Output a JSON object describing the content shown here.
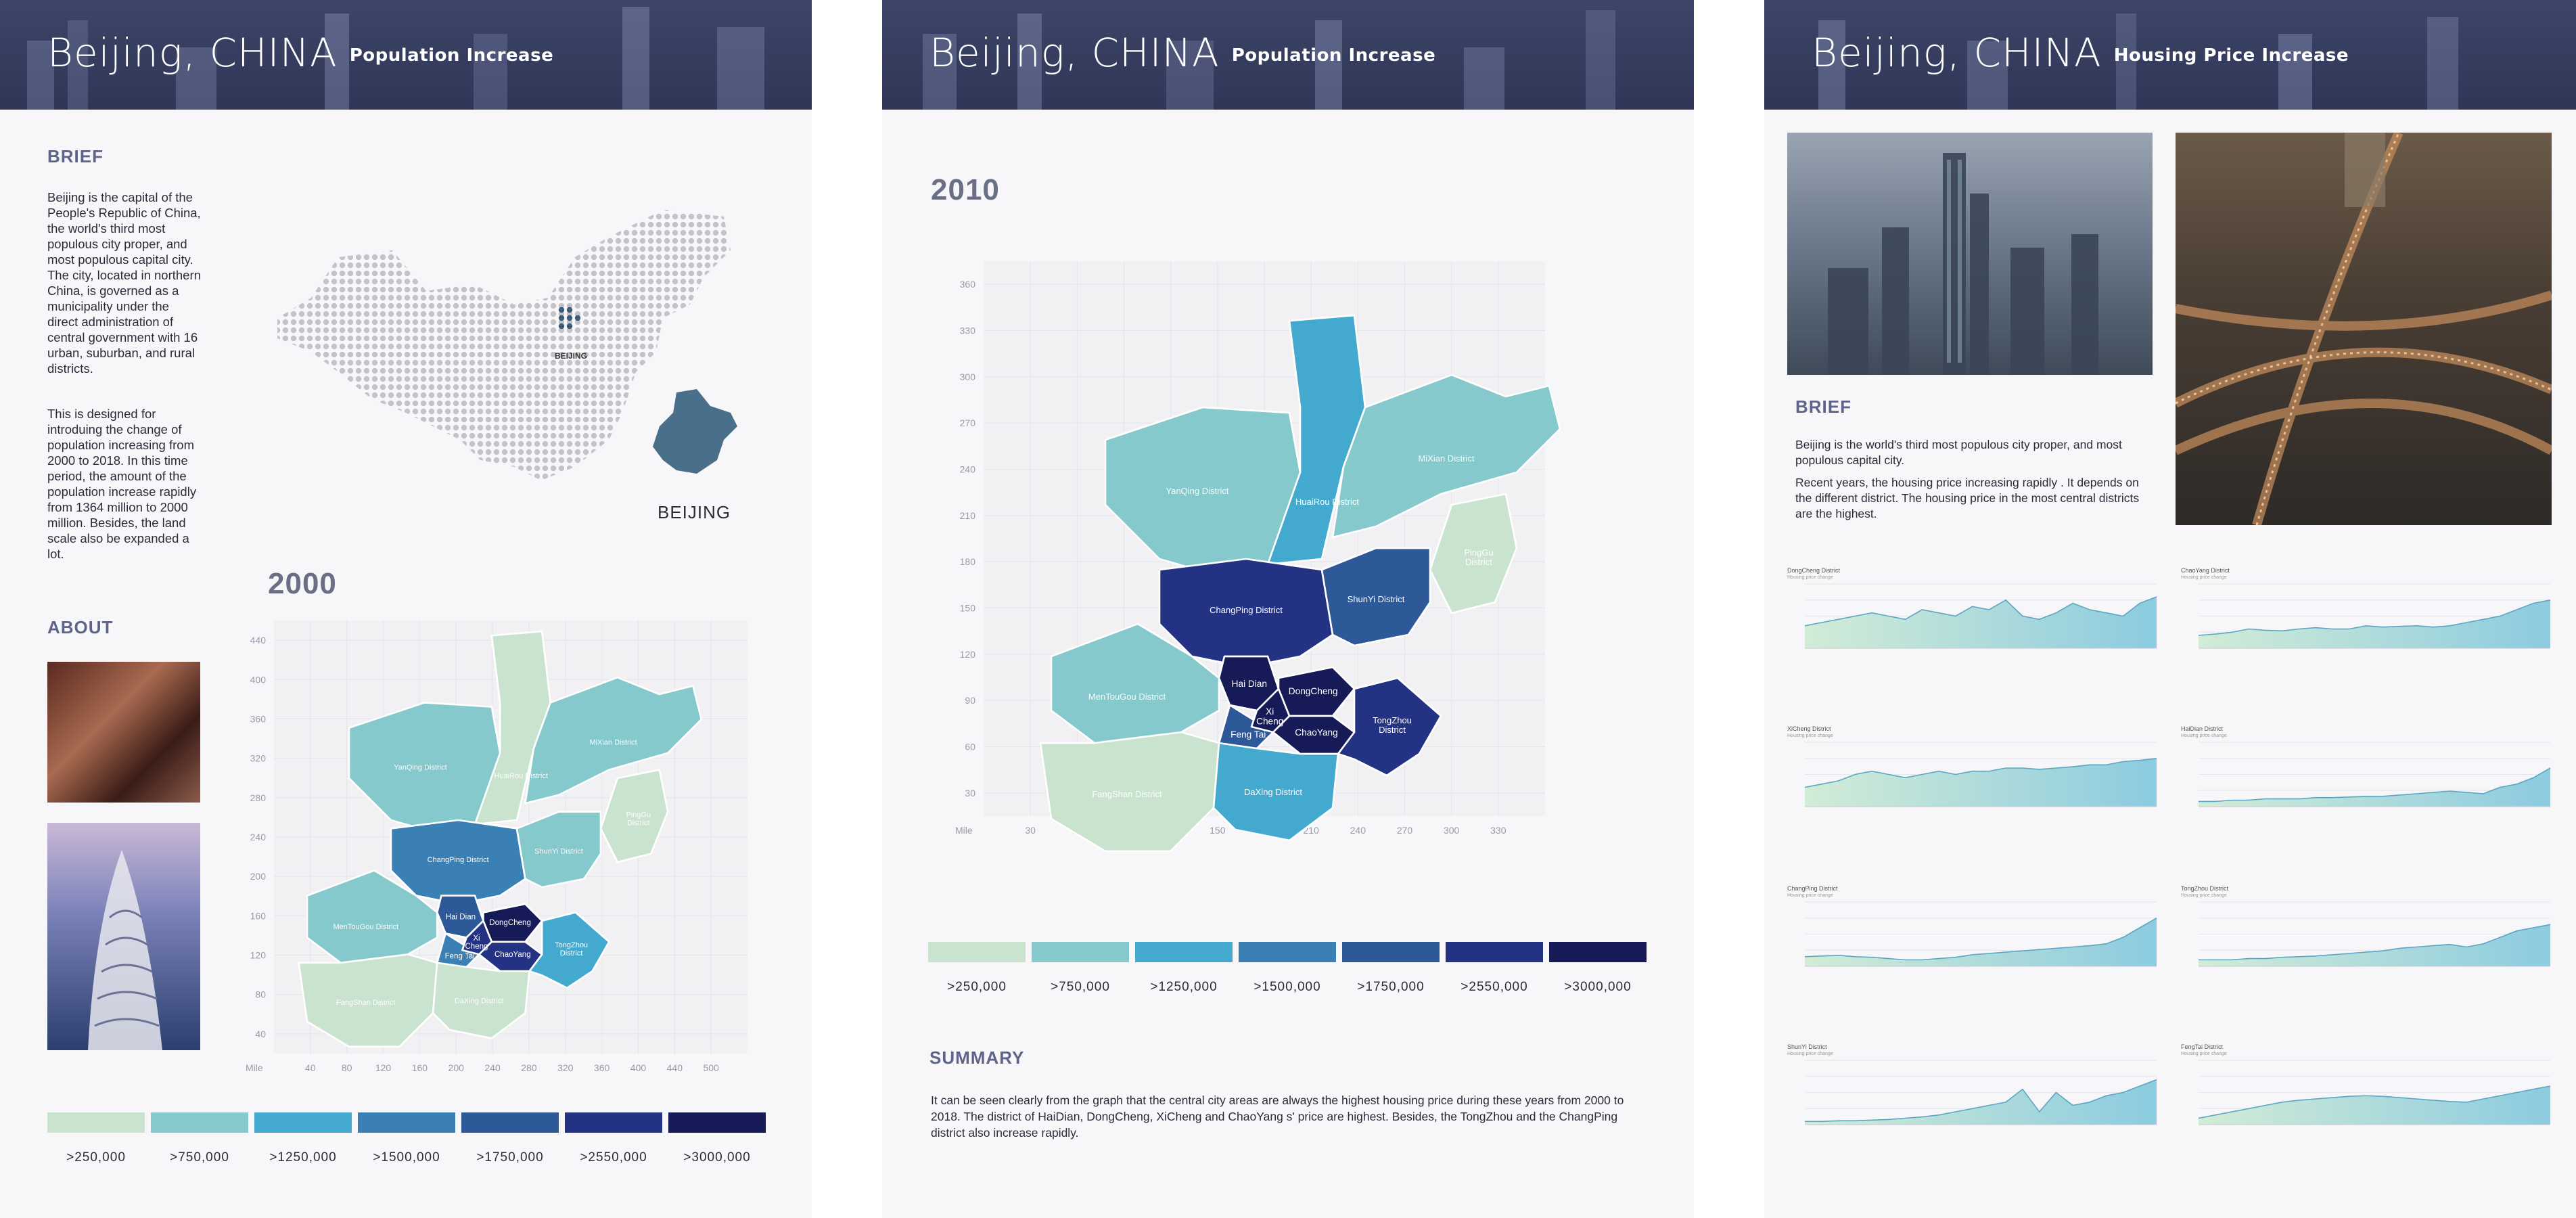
{
  "panel1": {
    "title": "Beijing, CHINA",
    "subtitle": "Population Increase",
    "brief_heading": "BRIEF",
    "brief_p1": "Beijing is the capital of the People's Republic of China, the world's third most populous city proper, and most populous capital city. The city, located in northern China, is governed as a municipality under the direct administration of central government with 16 urban, suburban, and rural districts.",
    "brief_p2": "This is designed for introduing the change of population increasing from 2000 to 2018. In this time period, the amount of the population increase rapidly from 1364 million to 2000 million. Besides, the land scale also be expanded a lot.",
    "china_map_label": "BEIJING",
    "beijing_label": "BEIJING",
    "about_heading": "ABOUT",
    "year": "2000",
    "y_ticks": [
      "440",
      "400",
      "360",
      "320",
      "280",
      "240",
      "200",
      "160",
      "120",
      "80",
      "40"
    ],
    "x_unit": "Mile",
    "x_ticks": [
      "40",
      "80",
      "120",
      "160",
      "200",
      "240",
      "280",
      "320",
      "360",
      "400",
      "440",
      "500"
    ],
    "districts": {
      "yanqing": "YanQing District",
      "huairou": "HuaiRou District",
      "mixian": "MiXian District",
      "pinggu": "PingGu District",
      "changping": "ChangPing District",
      "shunyi": "ShunYi District",
      "haidian": "Hai Dian",
      "xicheng": "Xi Cheng",
      "dongcheng": "DongCheng",
      "fengtai": "Feng Tai",
      "chaoyang": "ChaoYang",
      "tongzhou": "TongZhou District",
      "mentougou": "MenTouGou District",
      "fangshan": "FangShan District",
      "daxing": "DaXing District"
    }
  },
  "panel2": {
    "title": "Beijing, CHINA",
    "subtitle": "Population Increase",
    "year": "2010",
    "y_ticks": [
      "360",
      "330",
      "300",
      "270",
      "240",
      "210",
      "180",
      "150",
      "120",
      "90",
      "60",
      "30"
    ],
    "x_unit": "Mile",
    "x_ticks": [
      "30",
      "60",
      "90",
      "120",
      "150",
      "180",
      "210",
      "240",
      "270",
      "300",
      "330"
    ],
    "summary_heading": "SUMMARY",
    "summary_text": "It can be seen clearly from the graph that the central city areas are always the highest housing price during these years from 2000 to 2018. The district of HaiDian, DongCheng, XiCheng and ChaoYang s' price are highest. Besides, the TongZhou and the ChangPing district also increase rapidly.",
    "districts": {
      "yanqing": "YanQing District",
      "huairou": "HuaiRou District",
      "mixian": "MiXian District",
      "pinggu": "PingGu District",
      "changping": "ChangPing District",
      "shunyi": "ShunYi District",
      "haidian": "Hai Dian",
      "xicheng": "Xi Cheng",
      "dongcheng": "DongCheng",
      "fengtai": "Feng Tai",
      "chaoyang": "ChaoYang",
      "tongzhou": "TongZhou District",
      "mentougou": "MenTouGou District",
      "fangshan": "FangShan District",
      "daxing": "DaXing District"
    }
  },
  "panel3": {
    "title": "Beijing, CHINA",
    "subtitle": "Housing Price Increase",
    "brief_heading": "BRIEF",
    "brief_p1": "Beijing is the world's third most populous city proper, and most populous capital city.",
    "brief_p2": "Recent years, the housing price increasing rapidly . It depends on the different district. The housing price in the most central districts are the highest.",
    "charts": [
      {
        "name": "DongCheng District",
        "sub": "Housing price change"
      },
      {
        "name": "ChaoYang District",
        "sub": "Housing price change"
      },
      {
        "name": "XiCheng District",
        "sub": "Housing price change"
      },
      {
        "name": "HaiDian District",
        "sub": "Housing price change"
      },
      {
        "name": "ChangPing District",
        "sub": "Housing price change"
      },
      {
        "name": "TongZhou District",
        "sub": "Housing price change"
      },
      {
        "name": "ShunYi District",
        "sub": "Housing price change"
      },
      {
        "name": "FengTai District",
        "sub": "Housing price change"
      }
    ]
  },
  "legend": {
    "colors": [
      "#c9e3cf",
      "#85c9cc",
      "#44a9cf",
      "#3a80b5",
      "#2e5998",
      "#233283",
      "#161b57"
    ],
    "labels": [
      ">250,000",
      ">750,000",
      ">1250,000",
      ">1500,000",
      ">1750,000",
      ">2550,000",
      ">3000,000"
    ]
  },
  "colors": {
    "banner": "#353c5e",
    "heading": "#5e6488",
    "beijing_shape": "#4a6f8a"
  }
}
